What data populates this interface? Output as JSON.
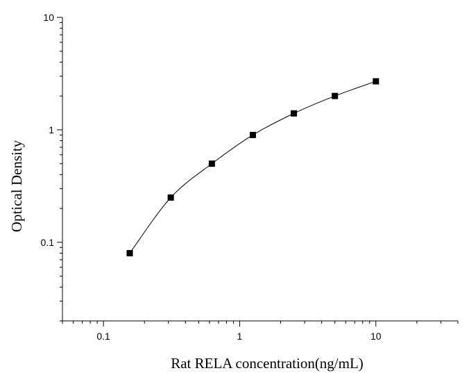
{
  "chart_data": {
    "type": "scatter",
    "title": "",
    "xlabel": "Rat RELA concentration(ng/mL)",
    "ylabel": "Optical Density",
    "x_scale": "log",
    "y_scale": "log",
    "xlim": [
      0.05,
      40
    ],
    "ylim": [
      0.02,
      10
    ],
    "x_tick_labels": [
      {
        "value": 0.1,
        "label": "0.1"
      },
      {
        "value": 1,
        "label": "1"
      },
      {
        "value": 10,
        "label": "10"
      }
    ],
    "y_tick_labels": [
      {
        "value": 0.1,
        "label": "0.1"
      },
      {
        "value": 1,
        "label": "1"
      },
      {
        "value": 10,
        "label": "10"
      }
    ],
    "grid": false,
    "legend": "none",
    "series": [
      {
        "x": [
          0.156,
          0.312,
          0.625,
          1.25,
          2.5,
          5,
          10
        ],
        "y": [
          0.08,
          0.25,
          0.5,
          0.9,
          1.4,
          2.0,
          2.7
        ],
        "marker": "square",
        "line": "smooth",
        "color": "#000000"
      }
    ]
  }
}
